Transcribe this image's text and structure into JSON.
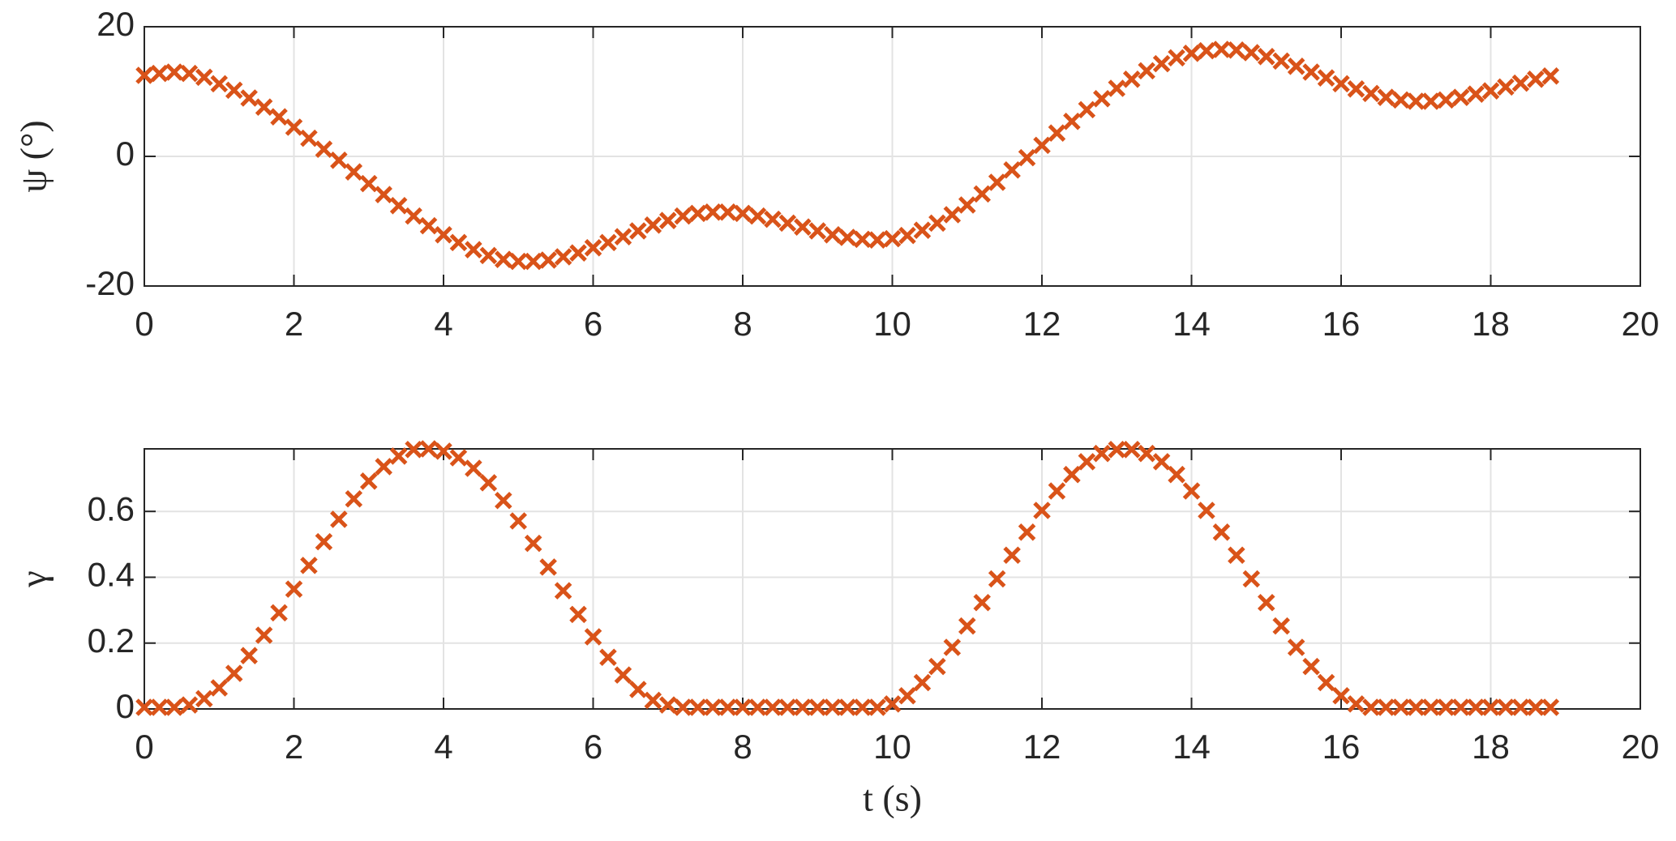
{
  "chart_data": [
    {
      "type": "scatter",
      "ylabel": "ψ (°)",
      "marker": "x",
      "color": "#D95319",
      "grid": true,
      "xlim": [
        0,
        20
      ],
      "xticks": [
        0,
        2,
        4,
        6,
        8,
        10,
        12,
        14,
        16,
        18,
        20
      ],
      "ylim": [
        -20,
        20
      ],
      "yticks": [
        -20,
        0,
        20
      ],
      "x": [
        0,
        0.2,
        0.4,
        0.6,
        0.8,
        1,
        1.2,
        1.4,
        1.6,
        1.8,
        2,
        2.2,
        2.4,
        2.6,
        2.8,
        3,
        3.2,
        3.4,
        3.6,
        3.8,
        4,
        4.2,
        4.4,
        4.6,
        4.8,
        5,
        5.2,
        5.4,
        5.6,
        5.8,
        6,
        6.2,
        6.4,
        6.6,
        6.8,
        7,
        7.2,
        7.4,
        7.6,
        7.8,
        8,
        8.2,
        8.4,
        8.6,
        8.8,
        9,
        9.2,
        9.4,
        9.6,
        9.8,
        10,
        10.2,
        10.4,
        10.6,
        10.8,
        11,
        11.2,
        11.4,
        11.6,
        11.8,
        12,
        12.2,
        12.4,
        12.6,
        12.8,
        13,
        13.2,
        13.4,
        13.6,
        13.8,
        14,
        14.2,
        14.4,
        14.6,
        14.8,
        15,
        15.2,
        15.4,
        15.6,
        15.8,
        16,
        16.2,
        16.4,
        16.6,
        16.8,
        17,
        17.2,
        17.4,
        17.6,
        17.8,
        18,
        18.2,
        18.4,
        18.6,
        18.8
      ],
      "values": [
        12.5,
        12.8,
        13,
        12.8,
        12.2,
        11.2,
        10.2,
        9,
        7.6,
        6.1,
        4.5,
        2.8,
        1.1,
        -0.6,
        -2.4,
        -4.2,
        -5.9,
        -7.6,
        -9.2,
        -10.7,
        -12.1,
        -13.3,
        -14.4,
        -15.3,
        -15.9,
        -16.2,
        -16.2,
        -16,
        -15.5,
        -14.9,
        -14.1,
        -13.3,
        -12.4,
        -11.5,
        -10.6,
        -9.9,
        -9.2,
        -8.8,
        -8.6,
        -8.6,
        -8.8,
        -9.2,
        -9.7,
        -10.3,
        -10.9,
        -11.5,
        -12.1,
        -12.5,
        -12.8,
        -12.9,
        -12.7,
        -12.2,
        -11.4,
        -10.3,
        -9,
        -7.5,
        -5.8,
        -4,
        -2.1,
        -0.2,
        1.7,
        3.6,
        5.4,
        7.2,
        8.9,
        10.5,
        11.9,
        13.2,
        14.3,
        15.2,
        15.9,
        16.3,
        16.5,
        16.4,
        16,
        15.4,
        14.7,
        13.9,
        13,
        12.1,
        11.2,
        10.4,
        9.7,
        9.1,
        8.7,
        8.5,
        8.5,
        8.7,
        9.1,
        9.6,
        10.1,
        10.7,
        11.3,
        11.9,
        12.4
      ]
    },
    {
      "type": "scatter",
      "ylabel": "γ",
      "xlabel": "t (s)",
      "marker": "x",
      "color": "#D95319",
      "grid": true,
      "xlim": [
        0,
        20
      ],
      "xticks": [
        0,
        2,
        4,
        6,
        8,
        10,
        12,
        14,
        16,
        18,
        20
      ],
      "ylim": [
        0,
        0.79
      ],
      "yticks": [
        0,
        0.2,
        0.4,
        0.6
      ],
      "x": [
        0,
        0.2,
        0.4,
        0.6,
        0.8,
        1,
        1.2,
        1.4,
        1.6,
        1.8,
        2,
        2.2,
        2.4,
        2.6,
        2.8,
        3,
        3.2,
        3.4,
        3.6,
        3.8,
        4,
        4.2,
        4.4,
        4.6,
        4.8,
        5,
        5.2,
        5.4,
        5.6,
        5.8,
        6,
        6.2,
        6.4,
        6.6,
        6.8,
        7,
        7.2,
        7.4,
        7.6,
        7.8,
        8,
        8.2,
        8.4,
        8.6,
        8.8,
        9,
        9.2,
        9.4,
        9.6,
        9.8,
        10,
        10.2,
        10.4,
        10.6,
        10.8,
        11,
        11.2,
        11.4,
        11.6,
        11.8,
        12,
        12.2,
        12.4,
        12.6,
        12.8,
        13,
        13.2,
        13.4,
        13.6,
        13.8,
        14,
        14.2,
        14.4,
        14.6,
        14.8,
        15,
        15.2,
        15.4,
        15.6,
        15.8,
        16,
        16.2,
        16.4,
        16.6,
        16.8,
        17,
        17.2,
        17.4,
        17.6,
        17.8,
        18,
        18.2,
        18.4,
        18.6,
        18.8
      ],
      "values": [
        0.005,
        0.005,
        0.005,
        0.012,
        0.031,
        0.064,
        0.108,
        0.162,
        0.224,
        0.292,
        0.364,
        0.436,
        0.508,
        0.576,
        0.638,
        0.692,
        0.736,
        0.768,
        0.788,
        0.79,
        0.783,
        0.763,
        0.731,
        0.687,
        0.633,
        0.571,
        0.503,
        0.431,
        0.359,
        0.287,
        0.219,
        0.157,
        0.103,
        0.059,
        0.026,
        0.012,
        0.005,
        0.005,
        0.005,
        0.005,
        0.005,
        0.005,
        0.005,
        0.005,
        0.005,
        0.005,
        0.005,
        0.005,
        0.005,
        0.005,
        0.015,
        0.04,
        0.08,
        0.129,
        0.187,
        0.252,
        0.323,
        0.395,
        0.467,
        0.537,
        0.603,
        0.662,
        0.712,
        0.751,
        0.776,
        0.788,
        0.788,
        0.776,
        0.751,
        0.712,
        0.662,
        0.603,
        0.537,
        0.467,
        0.395,
        0.323,
        0.252,
        0.187,
        0.129,
        0.08,
        0.04,
        0.015,
        0.005,
        0.005,
        0.005,
        0.005,
        0.005,
        0.005,
        0.005,
        0.005,
        0.005,
        0.005,
        0.005,
        0.005,
        0.005
      ]
    }
  ]
}
